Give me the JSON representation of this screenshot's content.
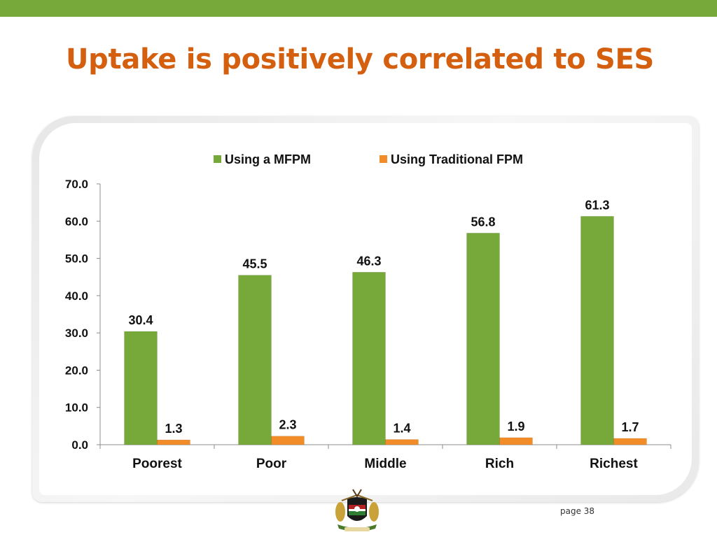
{
  "slide": {
    "title": "Uptake is positively correlated to SES",
    "page_label": "page 38"
  },
  "colors": {
    "top_bar": "#76a83a",
    "title": "#d35f0f",
    "series_mfpm": "#76a83a",
    "series_traditional": "#f28c28"
  },
  "chart_data": {
    "type": "bar",
    "categories": [
      "Poorest",
      "Poor",
      "Middle",
      "Rich",
      "Richest"
    ],
    "series": [
      {
        "name": "Using a MFPM",
        "values": [
          30.4,
          45.5,
          46.3,
          56.8,
          61.3
        ],
        "labels": [
          "30.4",
          "45.5",
          "46.3",
          "56.8",
          "61.3"
        ],
        "color": "#76a83a"
      },
      {
        "name": "Using Traditional FPM",
        "values": [
          1.3,
          2.3,
          1.4,
          1.9,
          1.7
        ],
        "labels": [
          "1.3",
          "2.3",
          "1.4",
          "1.9",
          "1.7"
        ],
        "color": "#f28c28"
      }
    ],
    "ylim": [
      0,
      70
    ],
    "yticks": [
      "0.0",
      "10.0",
      "20.0",
      "30.0",
      "40.0",
      "50.0",
      "60.0",
      "70.0"
    ],
    "legend": "top-center",
    "grid": false,
    "title": "",
    "xlabel": "",
    "ylabel": ""
  }
}
